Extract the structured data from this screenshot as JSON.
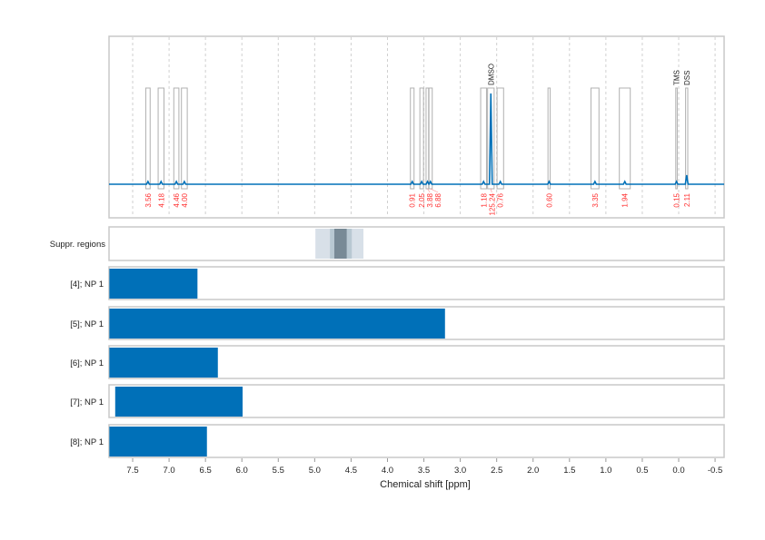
{
  "chart_data": {
    "type": "nmr-spectrum",
    "xlabel": "Chemical shift [ppm]",
    "xlim": [
      7.82,
      -0.62
    ],
    "x_reversed": true,
    "xticks": [
      "7.5",
      "7.0",
      "6.5",
      "6.0",
      "5.5",
      "5.0",
      "4.5",
      "4.0",
      "3.5",
      "3.0",
      "2.5",
      "2.0",
      "1.5",
      "1.0",
      "0.5",
      "0.0",
      "-0.5"
    ],
    "grid": true,
    "colors": {
      "spectrum": "#0070b8",
      "bars": "#0070b8",
      "integral_labels": "#ff3030",
      "region_box": "#b0b0b0",
      "grid": "#d0d0d0"
    },
    "regions": [
      {
        "center": 7.29,
        "width": 0.06,
        "integral": "3.56"
      },
      {
        "center": 7.11,
        "width": 0.08,
        "integral": "4.18"
      },
      {
        "center": 6.9,
        "width": 0.07,
        "integral": "4.46"
      },
      {
        "center": 6.79,
        "width": 0.08,
        "integral": "4.00"
      },
      {
        "center": 3.66,
        "width": 0.05,
        "integral": "0.91"
      },
      {
        "center": 3.53,
        "width": 0.05,
        "integral": "2.05"
      },
      {
        "center": 3.45,
        "width": 0.04,
        "integral": "3.88"
      },
      {
        "center": 3.41,
        "width": 0.05,
        "integral": "6.88"
      },
      {
        "center": 2.68,
        "width": 0.08,
        "integral": "1.18"
      },
      {
        "center": 2.58,
        "width": 0.09,
        "integral": "125.24",
        "annotation": "DMSO"
      },
      {
        "center": 2.45,
        "width": 0.09,
        "integral": "0.76"
      },
      {
        "center": 1.78,
        "width": 0.03,
        "integral": "0.60"
      },
      {
        "center": 1.15,
        "width": 0.11,
        "integral": "3.35"
      },
      {
        "center": 0.74,
        "width": 0.15,
        "integral": "1.94"
      },
      {
        "center": 0.03,
        "width": 0.02,
        "integral": "0.15",
        "annotation": "TMS"
      },
      {
        "center": -0.11,
        "width": 0.03,
        "integral": "2.11",
        "annotation": "DSS"
      }
    ],
    "suppression": {
      "label": "Suppr. regions",
      "bands": [
        {
          "from": 4.99,
          "to": 4.33,
          "level": 1
        },
        {
          "from": 4.79,
          "to": 4.49,
          "level": 2
        },
        {
          "from": 4.73,
          "to": 4.56,
          "level": 3
        }
      ]
    },
    "tracks": [
      {
        "label": "[4]; NP 1",
        "from": 7.82,
        "to": 6.61
      },
      {
        "label": "[5]; NP 1",
        "from": 7.82,
        "to": 3.21
      },
      {
        "label": "[6]; NP 1",
        "from": 7.82,
        "to": 6.33
      },
      {
        "label": "[7]; NP 1",
        "from": 7.74,
        "to": 5.99
      },
      {
        "label": "[8]; NP 1",
        "from": 7.82,
        "to": 6.48
      }
    ]
  }
}
